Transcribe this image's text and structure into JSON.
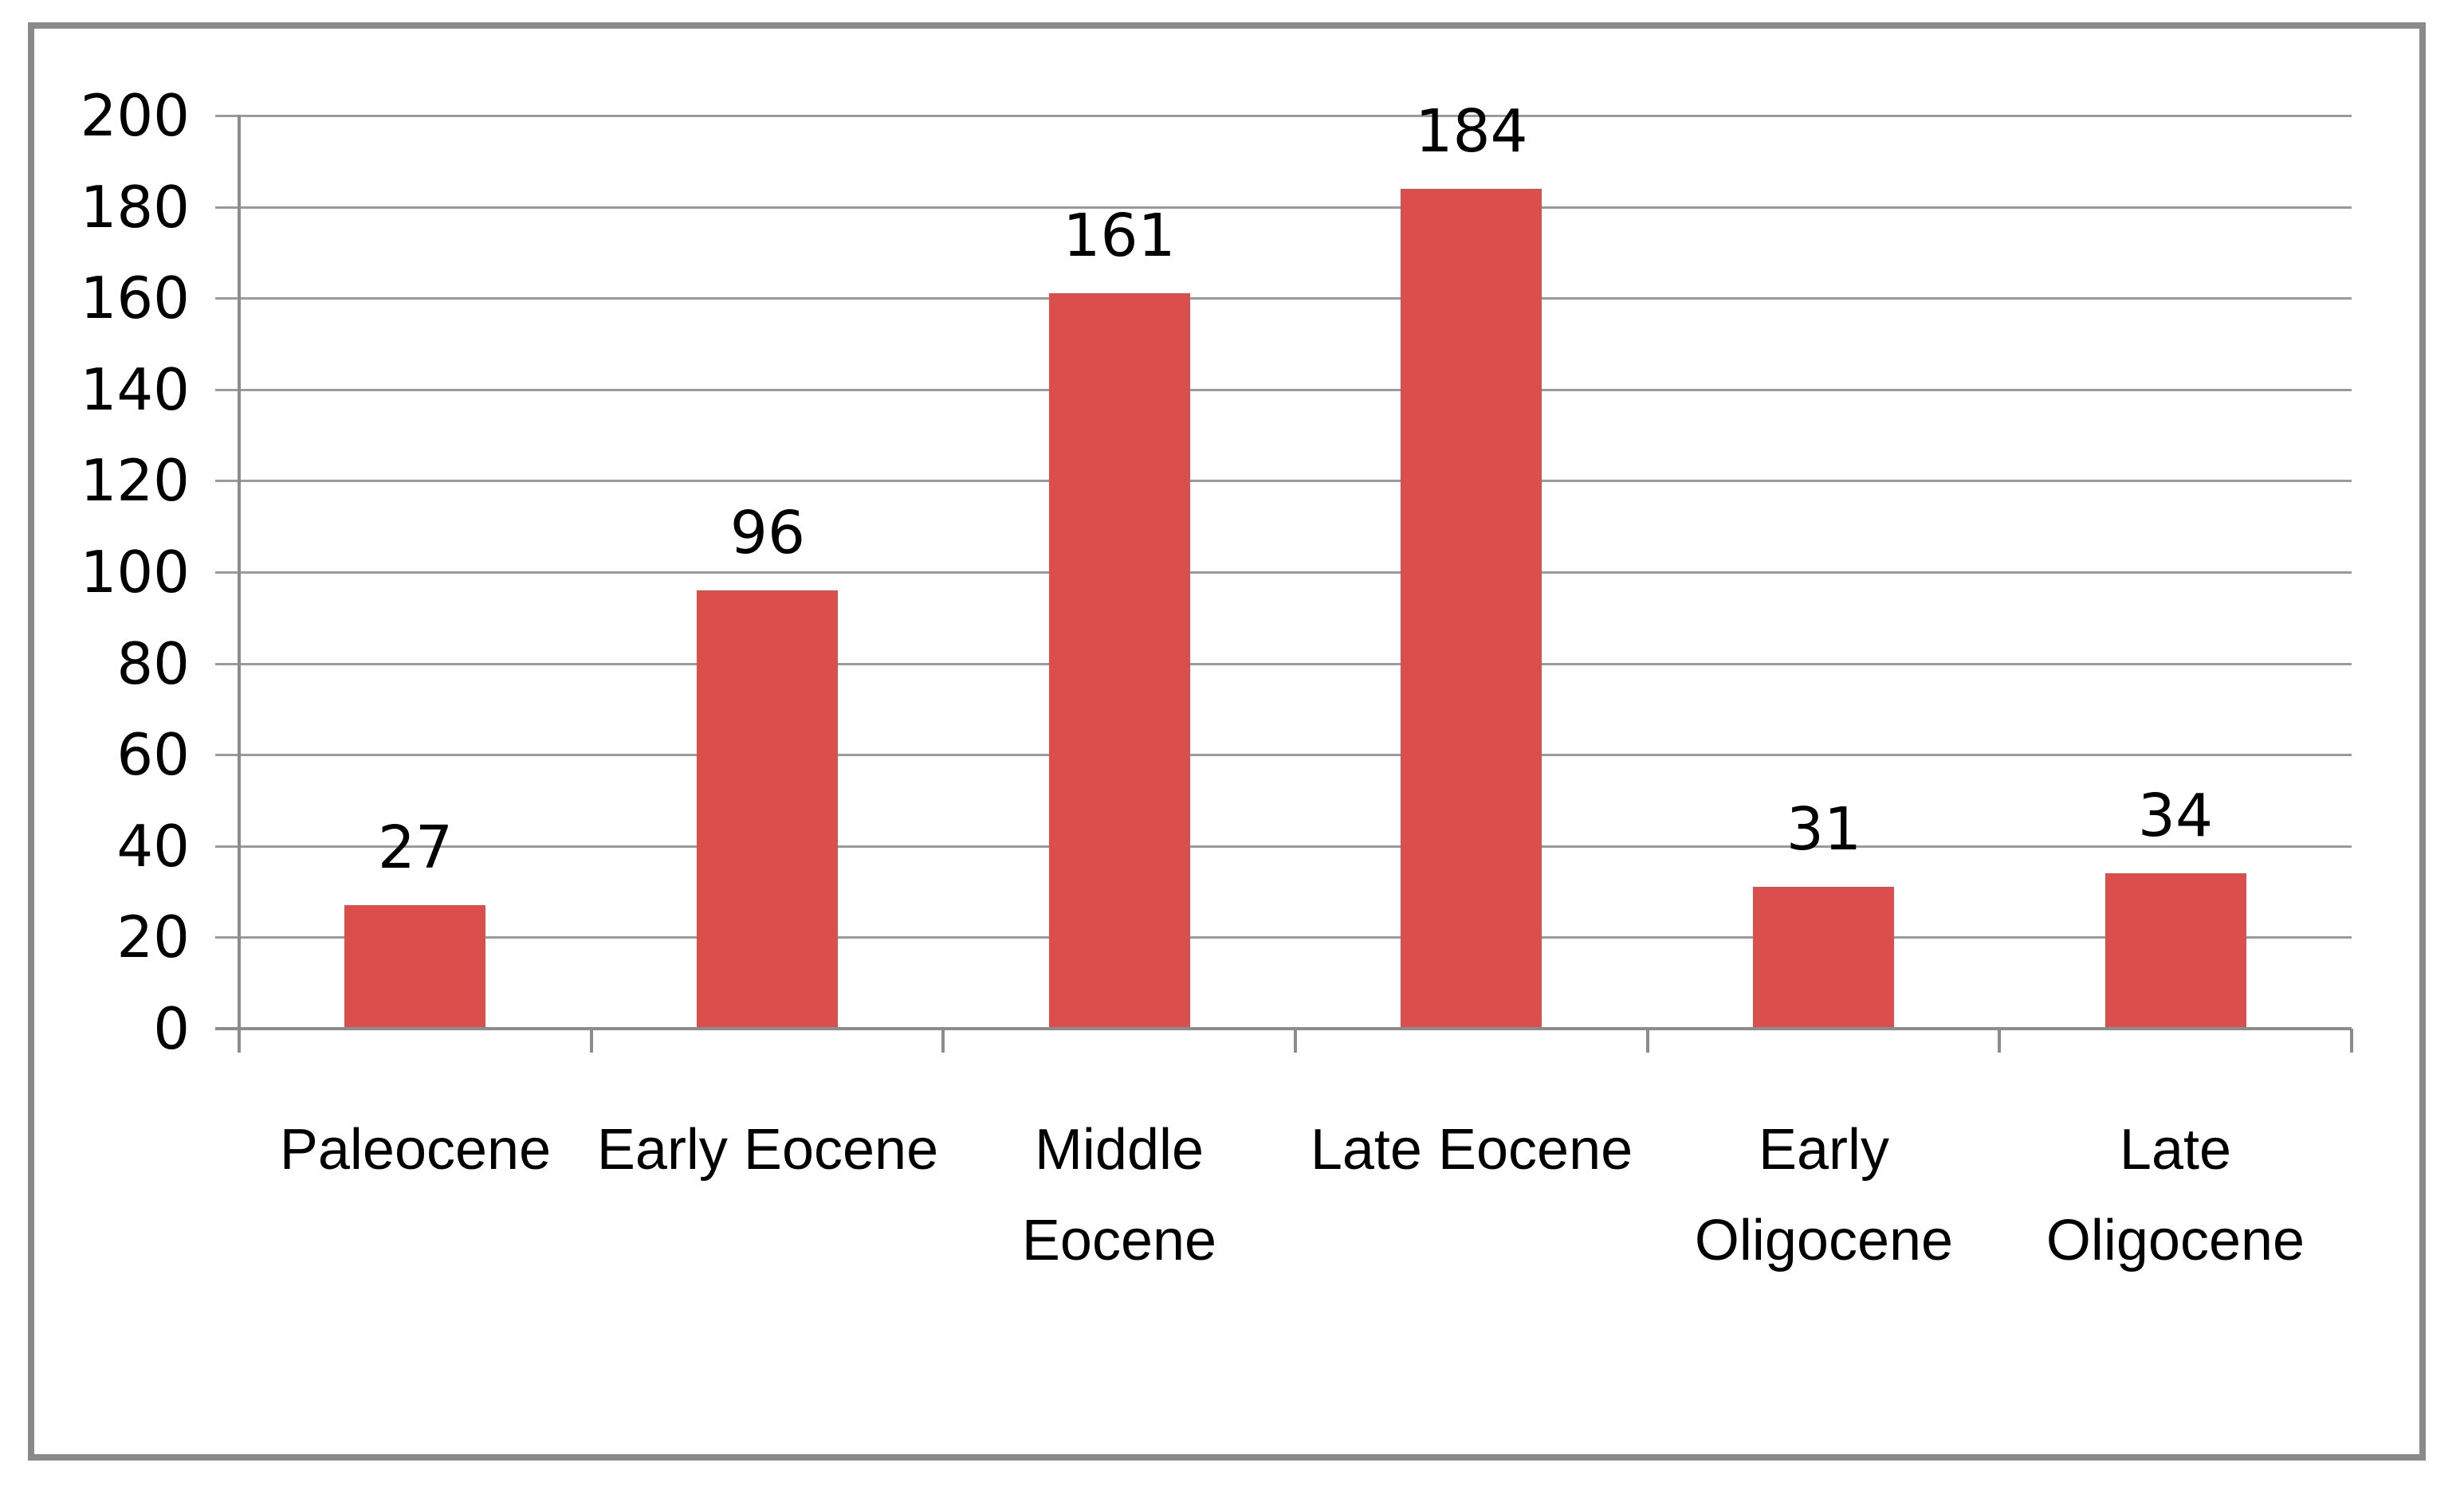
{
  "chart_data": {
    "type": "bar",
    "title": "",
    "xlabel": "",
    "ylabel": "",
    "categories": [
      "Paleocene",
      "Early Eocene",
      "Middle\nEocene",
      "Late Eocene",
      "Early\nOligocene",
      "Late\nOligocene"
    ],
    "values": [
      27,
      96,
      161,
      184,
      31,
      34
    ],
    "data_labels_visible": true,
    "ylim": [
      0,
      200
    ],
    "yticks": [
      200,
      180,
      160,
      140,
      120,
      100,
      80,
      60,
      40,
      20,
      0
    ],
    "grid": "horizontal",
    "legend": "none",
    "colors": {
      "bar": "#DA4F4C",
      "gridline": "#9B9B9B",
      "axis": "#8C8C8C",
      "frame_border": "#8A8A8A",
      "text": "#000000",
      "background": "#FFFFFF"
    }
  }
}
